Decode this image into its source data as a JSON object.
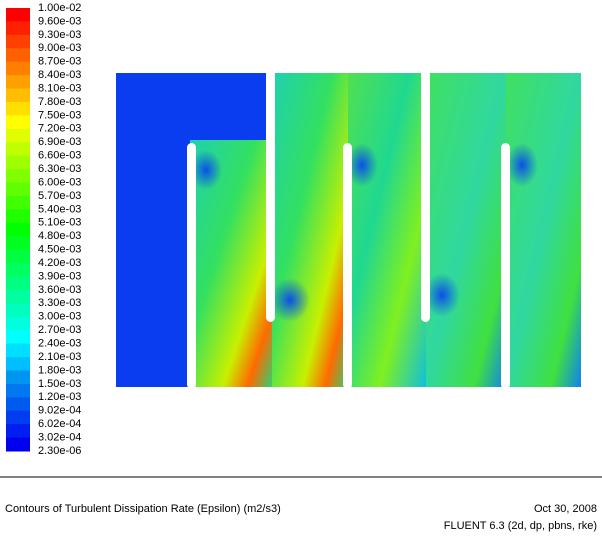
{
  "colorbar": {
    "labels": [
      "1.00e-02",
      "9.60e-03",
      "9.30e-03",
      "9.00e-03",
      "8.70e-03",
      "8.40e-03",
      "8.10e-03",
      "7.80e-03",
      "7.50e-03",
      "7.20e-03",
      "6.90e-03",
      "6.60e-03",
      "6.30e-03",
      "6.00e-03",
      "5.70e-03",
      "5.40e-03",
      "5.10e-03",
      "4.80e-03",
      "4.50e-03",
      "4.20e-03",
      "3.90e-03",
      "3.60e-03",
      "3.30e-03",
      "3.00e-03",
      "2.70e-03",
      "2.40e-03",
      "2.10e-03",
      "1.80e-03",
      "1.50e-03",
      "1.20e-03",
      "9.02e-04",
      "6.02e-04",
      "3.02e-04",
      "2.30e-06"
    ]
  },
  "caption": {
    "title": "Contours of Turbulent Dissipation Rate (Epsilon) (m2/s3)",
    "date": "Oct 30, 2008",
    "software": "FLUENT 6.3 (2d, dp, pbns, rke)"
  }
}
